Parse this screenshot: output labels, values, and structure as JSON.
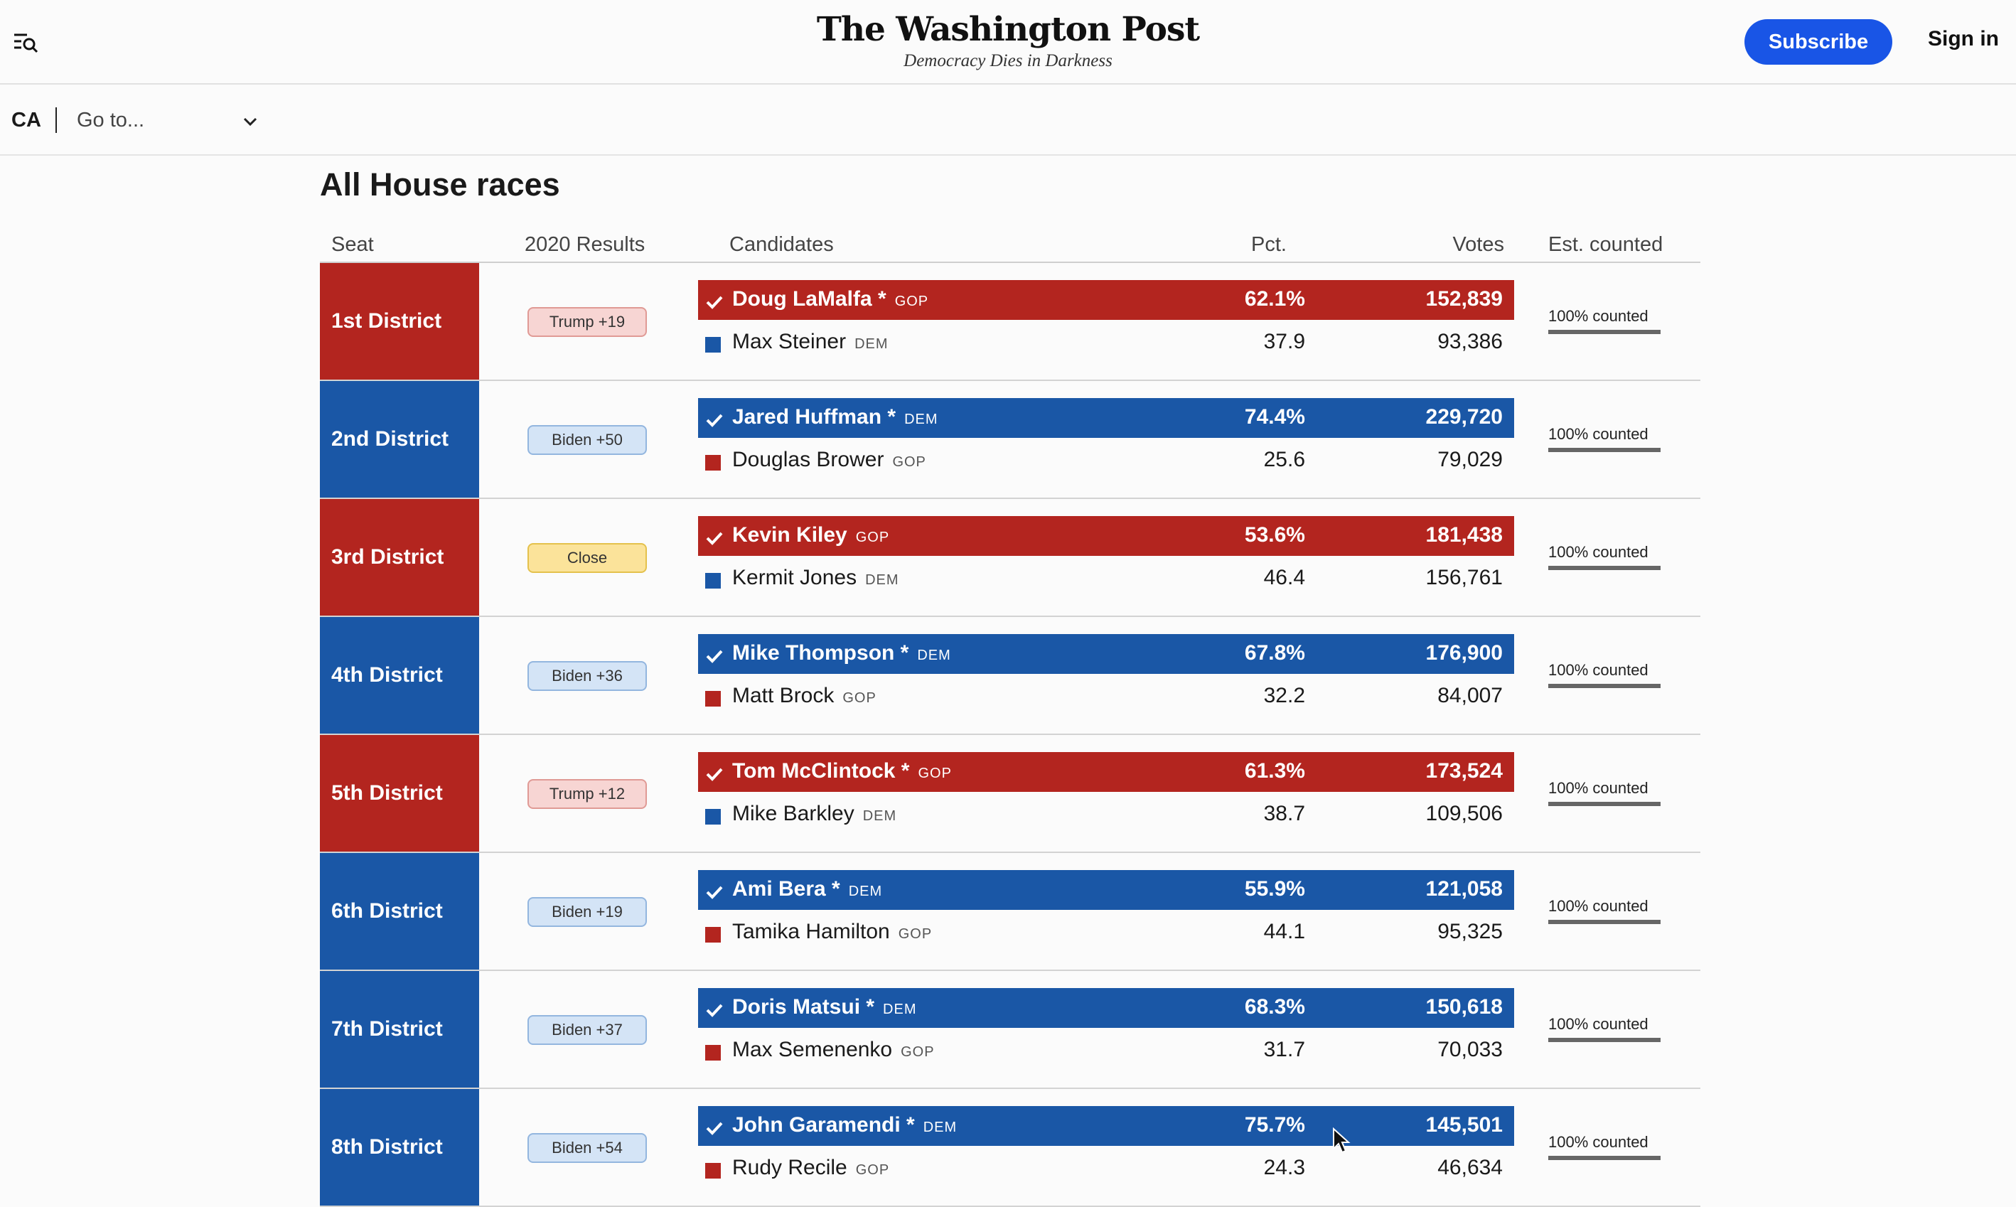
{
  "header": {
    "masthead": "The Washington Post",
    "tagline": "Democracy Dies in Darkness",
    "subscribe_label": "Subscribe",
    "signin_label": "Sign in",
    "menu_icon": "menu-search-icon"
  },
  "subnav": {
    "state": "CA",
    "goto_placeholder": "Go to...",
    "chevron_icon": "chevron-down-icon"
  },
  "main": {
    "title": "All House races",
    "columns": {
      "seat": "Seat",
      "results2020": "2020 Results",
      "candidates": "Candidates",
      "pct": "Pct.",
      "votes": "Votes",
      "est": "Est. counted"
    }
  },
  "colors": {
    "gop": "#b3251f",
    "dem": "#1a57a6",
    "subscribe": "#1955e6"
  },
  "races": [
    {
      "seat": "1st District",
      "seat_party": "gop",
      "rating": "Trump +19",
      "rating_kind": "gop",
      "winner": {
        "name": "Doug LaMalfa *",
        "party": "GOP",
        "pct": "62.1%",
        "votes": "152,839"
      },
      "loser": {
        "name": "Max Steiner",
        "party": "DEM",
        "pct": "37.9",
        "votes": "93,386"
      },
      "est": "100% counted"
    },
    {
      "seat": "2nd District",
      "seat_party": "dem",
      "rating": "Biden +50",
      "rating_kind": "dem",
      "winner": {
        "name": "Jared Huffman *",
        "party": "DEM",
        "pct": "74.4%",
        "votes": "229,720"
      },
      "loser": {
        "name": "Douglas Brower",
        "party": "GOP",
        "pct": "25.6",
        "votes": "79,029"
      },
      "est": "100% counted"
    },
    {
      "seat": "3rd District",
      "seat_party": "gop",
      "rating": "Close",
      "rating_kind": "close",
      "winner": {
        "name": "Kevin Kiley",
        "party": "GOP",
        "pct": "53.6%",
        "votes": "181,438"
      },
      "loser": {
        "name": "Kermit Jones",
        "party": "DEM",
        "pct": "46.4",
        "votes": "156,761"
      },
      "est": "100% counted"
    },
    {
      "seat": "4th District",
      "seat_party": "dem",
      "rating": "Biden +36",
      "rating_kind": "dem",
      "winner": {
        "name": "Mike Thompson *",
        "party": "DEM",
        "pct": "67.8%",
        "votes": "176,900"
      },
      "loser": {
        "name": "Matt Brock",
        "party": "GOP",
        "pct": "32.2",
        "votes": "84,007"
      },
      "est": "100% counted"
    },
    {
      "seat": "5th District",
      "seat_party": "gop",
      "rating": "Trump +12",
      "rating_kind": "gop",
      "winner": {
        "name": "Tom McClintock *",
        "party": "GOP",
        "pct": "61.3%",
        "votes": "173,524"
      },
      "loser": {
        "name": "Mike Barkley",
        "party": "DEM",
        "pct": "38.7",
        "votes": "109,506"
      },
      "est": "100% counted"
    },
    {
      "seat": "6th District",
      "seat_party": "dem",
      "rating": "Biden +19",
      "rating_kind": "dem",
      "winner": {
        "name": "Ami Bera *",
        "party": "DEM",
        "pct": "55.9%",
        "votes": "121,058"
      },
      "loser": {
        "name": "Tamika Hamilton",
        "party": "GOP",
        "pct": "44.1",
        "votes": "95,325"
      },
      "est": "100% counted"
    },
    {
      "seat": "7th District",
      "seat_party": "dem",
      "rating": "Biden +37",
      "rating_kind": "dem",
      "winner": {
        "name": "Doris Matsui *",
        "party": "DEM",
        "pct": "68.3%",
        "votes": "150,618"
      },
      "loser": {
        "name": "Max Semenenko",
        "party": "GOP",
        "pct": "31.7",
        "votes": "70,033"
      },
      "est": "100% counted"
    },
    {
      "seat": "8th District",
      "seat_party": "dem",
      "rating": "Biden +54",
      "rating_kind": "dem",
      "winner": {
        "name": "John Garamendi *",
        "party": "DEM",
        "pct": "75.7%",
        "votes": "145,501"
      },
      "loser": {
        "name": "Rudy Recile",
        "party": "GOP",
        "pct": "24.3",
        "votes": "46,634"
      },
      "est": "100% counted"
    }
  ]
}
